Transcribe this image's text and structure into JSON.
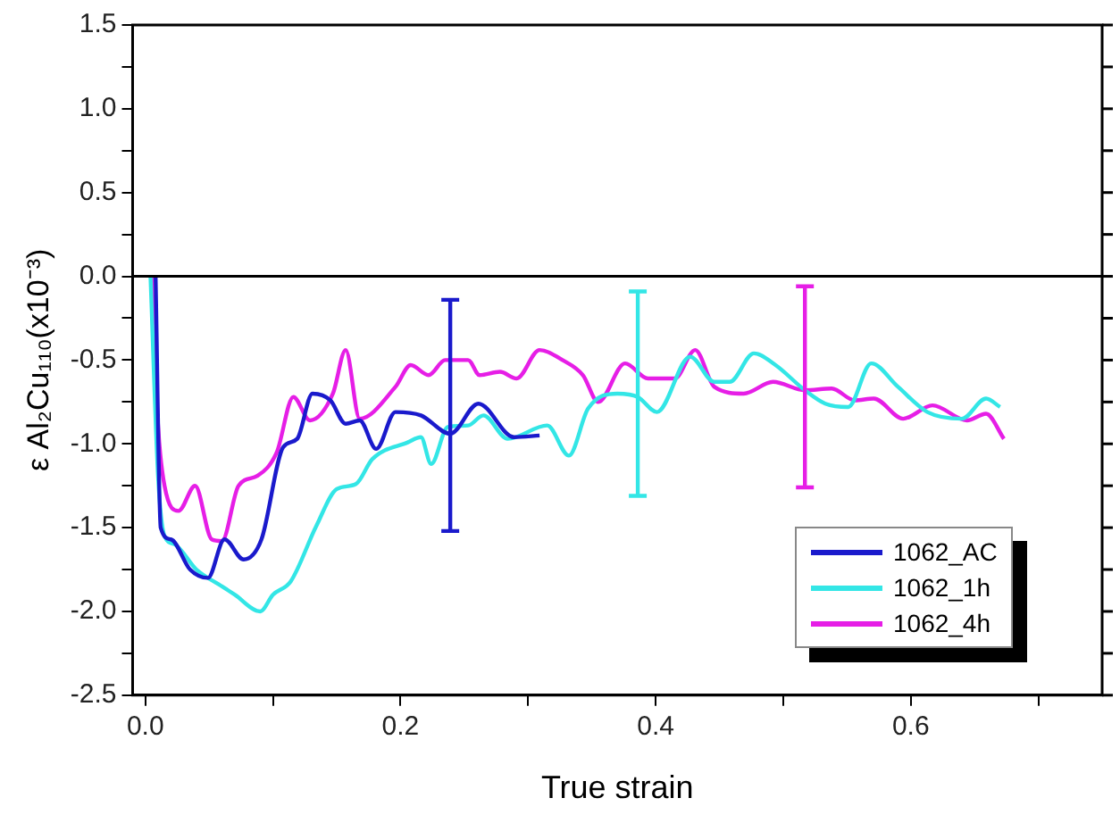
{
  "chart_data": {
    "type": "line",
    "xlabel": "True strain",
    "ylabel": "ε Al₂Cu₁₁₀(x10⁻³)",
    "xlim": [
      -0.01,
      0.75
    ],
    "ylim": [
      -2.5,
      1.5
    ],
    "xticks": [
      {
        "value": 0,
        "label": "0.0"
      },
      {
        "value": 0.1,
        "label": null
      },
      {
        "value": 0.2,
        "label": "0.2"
      },
      {
        "value": 0.3,
        "label": null
      },
      {
        "value": 0.4,
        "label": "0.4"
      },
      {
        "value": 0.5,
        "label": null
      },
      {
        "value": 0.6,
        "label": "0.6"
      },
      {
        "value": 0.7,
        "label": null
      }
    ],
    "yticks": [
      {
        "value": -2.5,
        "label": "-2.5"
      },
      {
        "value": -2.25,
        "label": null
      },
      {
        "value": -2,
        "label": "-2.0"
      },
      {
        "value": -1.75,
        "label": null
      },
      {
        "value": -1.5,
        "label": "-1.5"
      },
      {
        "value": -1.25,
        "label": null
      },
      {
        "value": -1,
        "label": "-1.0"
      },
      {
        "value": -0.75,
        "label": null
      },
      {
        "value": -0.5,
        "label": "-0.5"
      },
      {
        "value": -0.25,
        "label": null
      },
      {
        "value": 0,
        "label": "0.0"
      },
      {
        "value": 0.25,
        "label": null
      },
      {
        "value": 0.5,
        "label": "0.5"
      },
      {
        "value": 0.75,
        "label": null
      },
      {
        "value": 1,
        "label": "1.0"
      },
      {
        "value": 1.25,
        "label": null
      },
      {
        "value": 1.5,
        "label": "1.5"
      }
    ],
    "grid": false,
    "legend": "bottom right",
    "marker": "none",
    "line_style": "solid",
    "ref_lines": [
      {
        "axis": "y",
        "value": 0,
        "color": "#000000"
      }
    ],
    "series": [
      {
        "name": "1062_AC",
        "color": "#1a1acc",
        "x": [
          0.008,
          0.012,
          0.02,
          0.035,
          0.049,
          0.062,
          0.077,
          0.091,
          0.108,
          0.119,
          0.131,
          0.145,
          0.157,
          0.168,
          0.181,
          0.196,
          0.216,
          0.239,
          0.261,
          0.289,
          0.309
        ],
        "values": [
          0,
          -1.5,
          -1.57,
          -1.75,
          -1.8,
          -1.57,
          -1.69,
          -1.57,
          -1.02,
          -0.97,
          -0.7,
          -0.74,
          -0.88,
          -0.86,
          -1.03,
          -0.81,
          -0.83,
          -0.94,
          -0.76,
          -0.96,
          -0.95
        ],
        "errors": [
          null,
          null,
          null,
          null,
          null,
          null,
          null,
          null,
          null,
          null,
          null,
          null,
          null,
          null,
          null,
          null,
          null,
          [
            -1.52,
            -0.14
          ],
          null,
          null,
          null
        ]
      },
      {
        "name": "1062_1h",
        "color": "#33e6e6",
        "x": [
          0.004,
          0.01,
          0.015,
          0.023,
          0.04,
          0.06,
          0.07,
          0.09,
          0.1,
          0.114,
          0.134,
          0.15,
          0.165,
          0.178,
          0.206,
          0.216,
          0.224,
          0.237,
          0.253,
          0.265,
          0.284,
          0.315,
          0.332,
          0.347,
          0.37,
          0.386,
          0.401,
          0.427,
          0.446,
          0.458,
          0.477,
          0.494,
          0.517,
          0.533,
          0.551,
          0.569,
          0.59,
          0.613,
          0.64,
          0.659,
          0.67
        ],
        "values": [
          0,
          -1.2,
          -1.55,
          -1.6,
          -1.75,
          -1.85,
          -1.9,
          -2.0,
          -1.9,
          -1.82,
          -1.49,
          -1.27,
          -1.24,
          -1.09,
          -0.99,
          -0.96,
          -1.12,
          -0.9,
          -0.89,
          -0.83,
          -0.97,
          -0.89,
          -1.07,
          -0.79,
          -0.7,
          -0.72,
          -0.81,
          -0.48,
          -0.63,
          -0.63,
          -0.46,
          -0.53,
          -0.68,
          -0.76,
          -0.78,
          -0.52,
          -0.66,
          -0.81,
          -0.85,
          -0.73,
          -0.78
        ],
        "errors": [
          null,
          null,
          null,
          null,
          null,
          null,
          null,
          null,
          null,
          null,
          null,
          null,
          null,
          null,
          null,
          null,
          null,
          null,
          null,
          null,
          null,
          null,
          null,
          null,
          null,
          [
            -1.31,
            -0.09
          ],
          null,
          null,
          null,
          null,
          null,
          null,
          null,
          null,
          null,
          null,
          null,
          null,
          null,
          null,
          null
        ]
      },
      {
        "name": "1062_4h",
        "color": "#e61ee6",
        "x": [
          0.005,
          0.01,
          0.015,
          0.026,
          0.039,
          0.052,
          0.06,
          0.073,
          0.088,
          0.103,
          0.116,
          0.129,
          0.147,
          0.157,
          0.168,
          0.196,
          0.208,
          0.222,
          0.235,
          0.253,
          0.262,
          0.278,
          0.291,
          0.309,
          0.327,
          0.343,
          0.355,
          0.376,
          0.394,
          0.415,
          0.431,
          0.446,
          0.469,
          0.492,
          0.517,
          0.538,
          0.556,
          0.571,
          0.594,
          0.617,
          0.644,
          0.659,
          0.673
        ],
        "values": [
          0,
          -0.9,
          -1.25,
          -1.4,
          -1.25,
          -1.57,
          -1.58,
          -1.25,
          -1.19,
          -1.05,
          -0.72,
          -0.86,
          -0.7,
          -0.44,
          -0.85,
          -0.66,
          -0.53,
          -0.59,
          -0.5,
          -0.5,
          -0.59,
          -0.57,
          -0.61,
          -0.44,
          -0.5,
          -0.59,
          -0.75,
          -0.52,
          -0.61,
          -0.61,
          -0.44,
          -0.66,
          -0.7,
          -0.63,
          -0.68,
          -0.67,
          -0.74,
          -0.73,
          -0.85,
          -0.77,
          -0.86,
          -0.82,
          -0.97
        ],
        "errors": [
          null,
          null,
          null,
          null,
          null,
          null,
          null,
          null,
          null,
          null,
          null,
          null,
          null,
          null,
          null,
          null,
          null,
          null,
          null,
          null,
          null,
          null,
          null,
          null,
          null,
          null,
          null,
          null,
          null,
          null,
          null,
          null,
          null,
          null,
          [
            -1.26,
            -0.06
          ],
          null,
          null,
          null,
          null,
          null,
          null,
          null,
          null
        ]
      }
    ]
  }
}
